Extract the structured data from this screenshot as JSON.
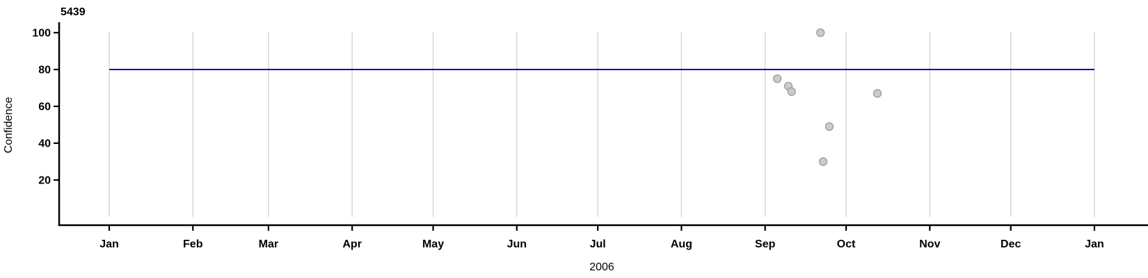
{
  "chart_data": {
    "type": "scatter",
    "title": "5439",
    "xlabel": "2006",
    "ylabel": "Confidence",
    "x_axis": {
      "kind": "time",
      "year": "2006",
      "ticks": [
        {
          "label": "Jan",
          "day": 0
        },
        {
          "label": "Feb",
          "day": 31
        },
        {
          "label": "Mar",
          "day": 59
        },
        {
          "label": "Apr",
          "day": 90
        },
        {
          "label": "May",
          "day": 120
        },
        {
          "label": "Jun",
          "day": 151
        },
        {
          "label": "Jul",
          "day": 181
        },
        {
          "label": "Aug",
          "day": 212
        },
        {
          "label": "Sep",
          "day": 243
        },
        {
          "label": "Oct",
          "day": 273
        },
        {
          "label": "Nov",
          "day": 304
        },
        {
          "label": "Dec",
          "day": 334
        },
        {
          "label": "Jan",
          "day": 365
        }
      ],
      "range_days": [
        0,
        365
      ],
      "grid": true
    },
    "y_axis": {
      "ticks": [
        100,
        80,
        60,
        40,
        20
      ],
      "range": [
        0,
        105
      ],
      "grid": false
    },
    "reference_line": {
      "value": 80,
      "span_days": [
        0,
        365
      ],
      "color": "#0000cc"
    },
    "points": [
      {
        "date": "2006-09-05",
        "day": 247.5,
        "confidence": 75
      },
      {
        "date": "2006-09-09",
        "day": 251.6,
        "confidence": 71
      },
      {
        "date": "2006-09-10",
        "day": 252.8,
        "confidence": 68
      },
      {
        "date": "2006-09-21",
        "day": 263.5,
        "confidence": 100
      },
      {
        "date": "2006-09-22",
        "day": 264.5,
        "confidence": 30
      },
      {
        "date": "2006-09-25",
        "day": 266.8,
        "confidence": 49
      },
      {
        "date": "2006-10-12",
        "day": 284.6,
        "confidence": 67
      }
    ],
    "style": {
      "point_fill": "#cbcbcb",
      "point_stroke": "#9a9a9a",
      "gridline_color": "#d6d6d6",
      "axis_color": "#000000",
      "refline_color": "#0000cc",
      "background": "#ffffff"
    }
  }
}
